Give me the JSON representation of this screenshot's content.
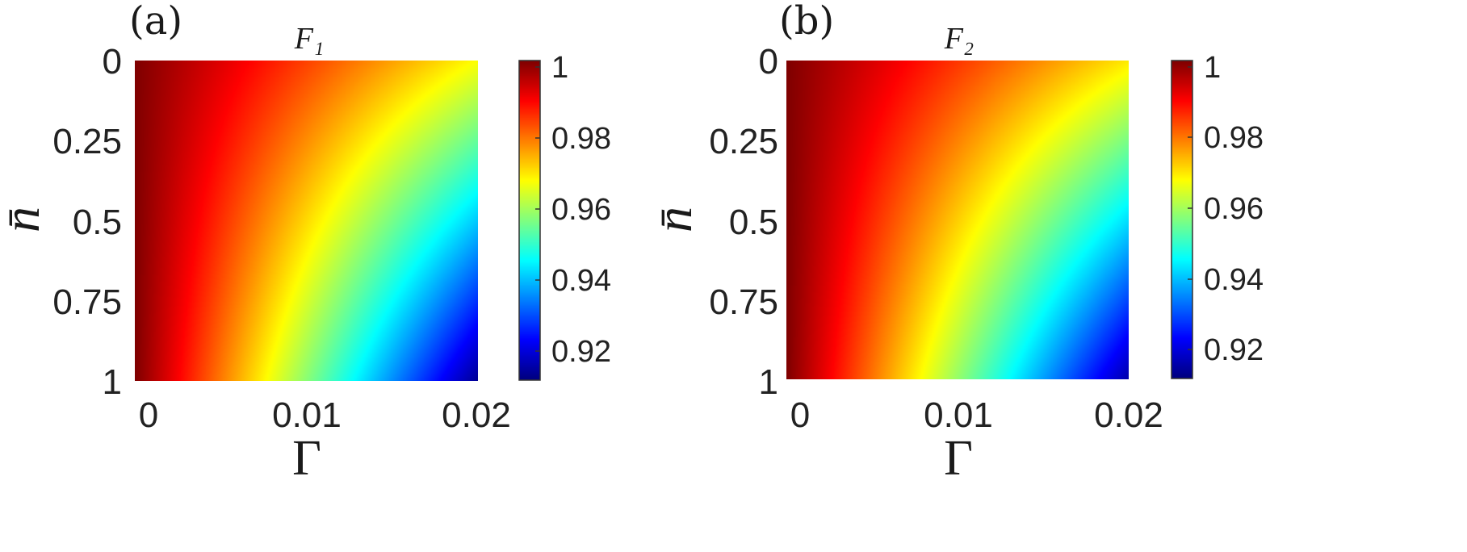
{
  "chart_data": [
    {
      "type": "heatmap",
      "panel_label": "(a)",
      "title": "F₁",
      "xlabel": "Γ",
      "ylabel": "n̄",
      "xlim": [
        0,
        0.02
      ],
      "ylim": [
        0,
        1
      ],
      "y_reversed": true,
      "x_ticks": [
        "0",
        "0.01",
        "0.02"
      ],
      "y_ticks": [
        "0",
        "0.25",
        "0.5",
        "0.75",
        "1"
      ],
      "colorbar": {
        "range": [
          0.91,
          1.0
        ],
        "ticks": [
          "1",
          "0.98",
          "0.96",
          "0.94",
          "0.92"
        ],
        "colormap": "jet"
      },
      "corner_values": {
        "gamma0_n0": 1.0,
        "gamma002_n0": 0.966,
        "gamma0_n1": 1.0,
        "gamma002_n1": 0.912
      }
    },
    {
      "type": "heatmap",
      "panel_label": "(b)",
      "title": "F₂",
      "xlabel": "Γ",
      "ylabel": "n̄",
      "xlim": [
        0,
        0.02
      ],
      "ylim": [
        0,
        1
      ],
      "y_reversed": true,
      "x_ticks": [
        "0",
        "0.01",
        "0.02"
      ],
      "y_ticks": [
        "0",
        "0.25",
        "0.5",
        "0.75",
        "1"
      ],
      "colorbar": {
        "range": [
          0.91,
          1.0
        ],
        "ticks": [
          "1",
          "0.98",
          "0.96",
          "0.94",
          "0.92"
        ],
        "colormap": "jet"
      },
      "corner_values": {
        "gamma0_n0": 1.0,
        "gamma002_n0": 0.968,
        "gamma0_n1": 1.0,
        "gamma002_n1": 0.914
      }
    }
  ]
}
